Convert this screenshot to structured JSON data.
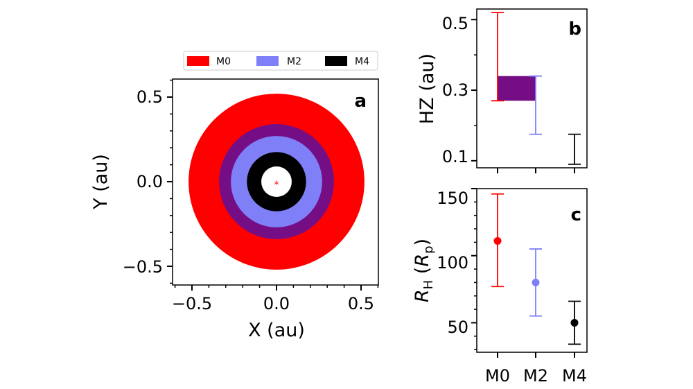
{
  "colors": {
    "M0": "#ff0000",
    "M2": "#7f7ff7",
    "M4": "#000000",
    "overlap": "#750e85"
  },
  "chart_data": [
    {
      "panel": "a",
      "type": "area",
      "title": "",
      "xlabel": "X (au)",
      "ylabel": "Y (au)",
      "xlim": [
        -0.6,
        0.6
      ],
      "ylim": [
        -0.6,
        0.6
      ],
      "xticks": [
        "−0.5",
        "0.0",
        "0.5"
      ],
      "yticks": [
        "0.5",
        "0.0",
        "−0.5"
      ],
      "legend": [
        "M0",
        "M2",
        "M4"
      ],
      "legend_position": "top",
      "annuli": [
        {
          "name": "M0",
          "inner": 0.27,
          "outer": 0.52
        },
        {
          "name": "M2",
          "inner": 0.175,
          "outer": 0.34
        },
        {
          "name": "M4",
          "inner": 0.09,
          "outer": 0.175
        }
      ],
      "star_symbol": "*"
    },
    {
      "panel": "b",
      "type": "bar",
      "xlabel": "",
      "ylabel": "HZ (au)",
      "categories": [
        "M0",
        "M2",
        "M4"
      ],
      "ylim": [
        0.08,
        0.53
      ],
      "yticks": [
        "0.5",
        "0.3",
        "0.1"
      ],
      "ranges": [
        {
          "name": "M0",
          "low": 0.27,
          "high": 0.52
        },
        {
          "name": "M2",
          "low": 0.175,
          "high": 0.34
        },
        {
          "name": "M4",
          "low": 0.09,
          "high": 0.175
        }
      ],
      "overlap": {
        "low": 0.27,
        "high": 0.34
      }
    },
    {
      "panel": "c",
      "type": "scatter",
      "xlabel": "",
      "ylabel": "R_H (R_p)",
      "ylabel_main": "R",
      "ylabel_sub": "H",
      "ylabel_open": " (",
      "ylabel_unit": "R",
      "ylabel_unit_sub": "p",
      "ylabel_close": ")",
      "categories": [
        "M0",
        "M2",
        "M4"
      ],
      "ylim": [
        28,
        150
      ],
      "yticks": [
        "150",
        "100",
        "50"
      ],
      "points": [
        {
          "name": "M0",
          "value": 111,
          "low": 77,
          "high": 146
        },
        {
          "name": "M2",
          "value": 80,
          "low": 55,
          "high": 105
        },
        {
          "name": "M4",
          "value": 50,
          "low": 34,
          "high": 66
        }
      ]
    }
  ]
}
